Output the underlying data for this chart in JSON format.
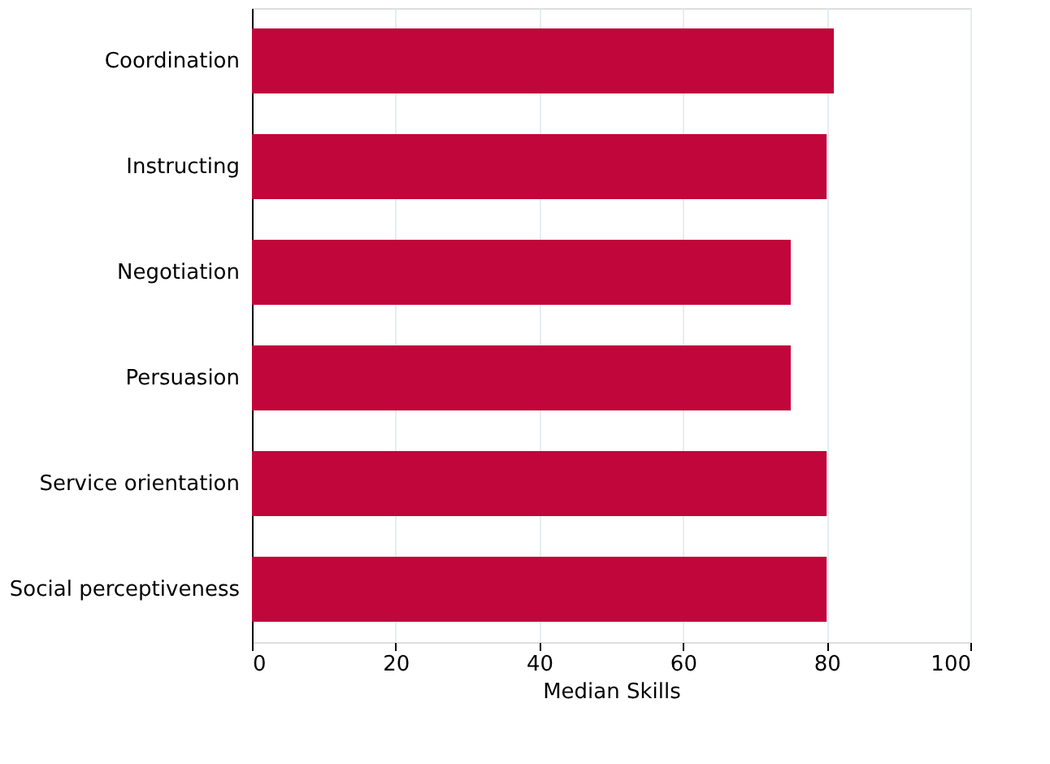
{
  "chart_data": {
    "type": "bar",
    "orientation": "horizontal",
    "xlabel": "Median Skills",
    "categories": [
      "Coordination",
      "Instructing",
      "Negotiation",
      "Persuasion",
      "Service orientation",
      "Social perceptiveness"
    ],
    "values": [
      81,
      80,
      75,
      75,
      80,
      80
    ],
    "color": "#c0063a",
    "xlim": [
      0,
      100
    ],
    "xticks": [
      0,
      20,
      40,
      60,
      80,
      100
    ],
    "grid": "x"
  }
}
